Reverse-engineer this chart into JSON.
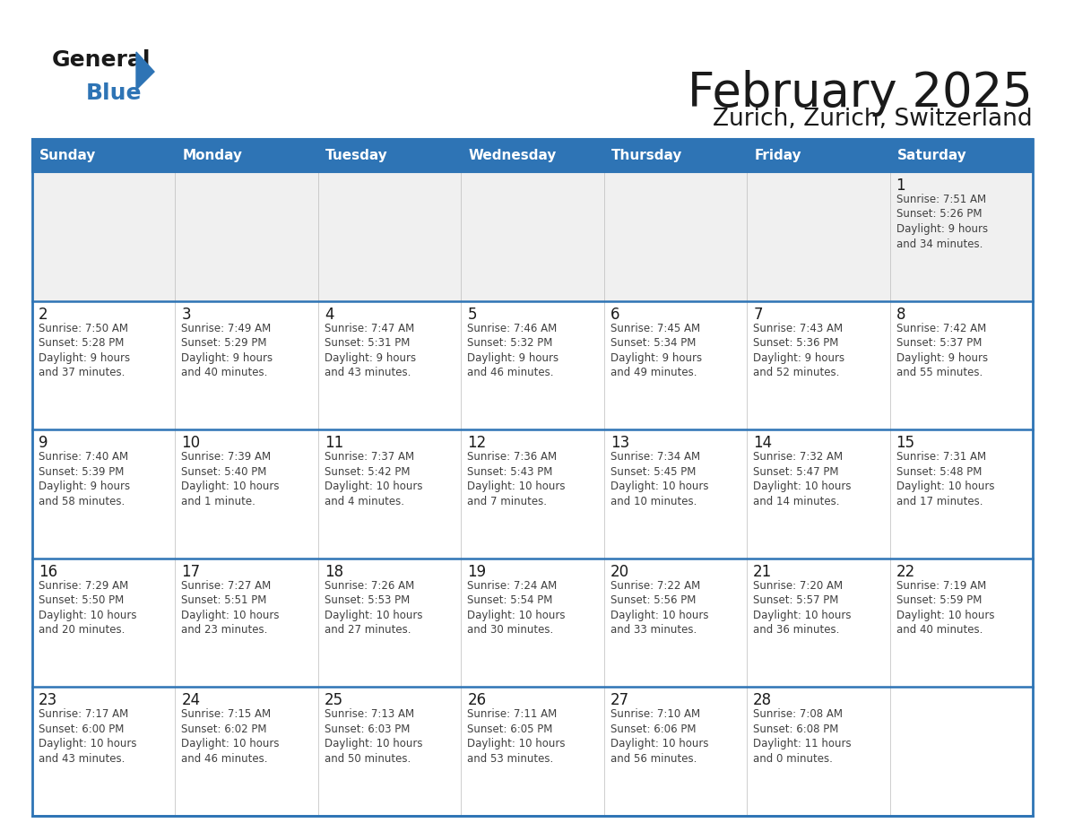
{
  "title": "February 2025",
  "subtitle": "Zurich, Zurich, Switzerland",
  "header_bg": "#2E74B5",
  "header_text": "#FFFFFF",
  "cell_bg": "#FFFFFF",
  "row1_bg": "#F0F0F0",
  "border_color": "#2E74B5",
  "grid_line_color": "#2E74B5",
  "day_headers": [
    "Sunday",
    "Monday",
    "Tuesday",
    "Wednesday",
    "Thursday",
    "Friday",
    "Saturday"
  ],
  "title_color": "#1A1A1A",
  "subtitle_color": "#1A1A1A",
  "day_number_color": "#1A1A1A",
  "info_text_color": "#404040",
  "logo_general_color": "#1A1A1A",
  "logo_blue_color": "#2E74B5",
  "days": [
    {
      "day": null,
      "info": ""
    },
    {
      "day": null,
      "info": ""
    },
    {
      "day": null,
      "info": ""
    },
    {
      "day": null,
      "info": ""
    },
    {
      "day": null,
      "info": ""
    },
    {
      "day": null,
      "info": ""
    },
    {
      "day": 1,
      "info": "Sunrise: 7:51 AM\nSunset: 5:26 PM\nDaylight: 9 hours\nand 34 minutes."
    },
    {
      "day": 2,
      "info": "Sunrise: 7:50 AM\nSunset: 5:28 PM\nDaylight: 9 hours\nand 37 minutes."
    },
    {
      "day": 3,
      "info": "Sunrise: 7:49 AM\nSunset: 5:29 PM\nDaylight: 9 hours\nand 40 minutes."
    },
    {
      "day": 4,
      "info": "Sunrise: 7:47 AM\nSunset: 5:31 PM\nDaylight: 9 hours\nand 43 minutes."
    },
    {
      "day": 5,
      "info": "Sunrise: 7:46 AM\nSunset: 5:32 PM\nDaylight: 9 hours\nand 46 minutes."
    },
    {
      "day": 6,
      "info": "Sunrise: 7:45 AM\nSunset: 5:34 PM\nDaylight: 9 hours\nand 49 minutes."
    },
    {
      "day": 7,
      "info": "Sunrise: 7:43 AM\nSunset: 5:36 PM\nDaylight: 9 hours\nand 52 minutes."
    },
    {
      "day": 8,
      "info": "Sunrise: 7:42 AM\nSunset: 5:37 PM\nDaylight: 9 hours\nand 55 minutes."
    },
    {
      "day": 9,
      "info": "Sunrise: 7:40 AM\nSunset: 5:39 PM\nDaylight: 9 hours\nand 58 minutes."
    },
    {
      "day": 10,
      "info": "Sunrise: 7:39 AM\nSunset: 5:40 PM\nDaylight: 10 hours\nand 1 minute."
    },
    {
      "day": 11,
      "info": "Sunrise: 7:37 AM\nSunset: 5:42 PM\nDaylight: 10 hours\nand 4 minutes."
    },
    {
      "day": 12,
      "info": "Sunrise: 7:36 AM\nSunset: 5:43 PM\nDaylight: 10 hours\nand 7 minutes."
    },
    {
      "day": 13,
      "info": "Sunrise: 7:34 AM\nSunset: 5:45 PM\nDaylight: 10 hours\nand 10 minutes."
    },
    {
      "day": 14,
      "info": "Sunrise: 7:32 AM\nSunset: 5:47 PM\nDaylight: 10 hours\nand 14 minutes."
    },
    {
      "day": 15,
      "info": "Sunrise: 7:31 AM\nSunset: 5:48 PM\nDaylight: 10 hours\nand 17 minutes."
    },
    {
      "day": 16,
      "info": "Sunrise: 7:29 AM\nSunset: 5:50 PM\nDaylight: 10 hours\nand 20 minutes."
    },
    {
      "day": 17,
      "info": "Sunrise: 7:27 AM\nSunset: 5:51 PM\nDaylight: 10 hours\nand 23 minutes."
    },
    {
      "day": 18,
      "info": "Sunrise: 7:26 AM\nSunset: 5:53 PM\nDaylight: 10 hours\nand 27 minutes."
    },
    {
      "day": 19,
      "info": "Sunrise: 7:24 AM\nSunset: 5:54 PM\nDaylight: 10 hours\nand 30 minutes."
    },
    {
      "day": 20,
      "info": "Sunrise: 7:22 AM\nSunset: 5:56 PM\nDaylight: 10 hours\nand 33 minutes."
    },
    {
      "day": 21,
      "info": "Sunrise: 7:20 AM\nSunset: 5:57 PM\nDaylight: 10 hours\nand 36 minutes."
    },
    {
      "day": 22,
      "info": "Sunrise: 7:19 AM\nSunset: 5:59 PM\nDaylight: 10 hours\nand 40 minutes."
    },
    {
      "day": 23,
      "info": "Sunrise: 7:17 AM\nSunset: 6:00 PM\nDaylight: 10 hours\nand 43 minutes."
    },
    {
      "day": 24,
      "info": "Sunrise: 7:15 AM\nSunset: 6:02 PM\nDaylight: 10 hours\nand 46 minutes."
    },
    {
      "day": 25,
      "info": "Sunrise: 7:13 AM\nSunset: 6:03 PM\nDaylight: 10 hours\nand 50 minutes."
    },
    {
      "day": 26,
      "info": "Sunrise: 7:11 AM\nSunset: 6:05 PM\nDaylight: 10 hours\nand 53 minutes."
    },
    {
      "day": 27,
      "info": "Sunrise: 7:10 AM\nSunset: 6:06 PM\nDaylight: 10 hours\nand 56 minutes."
    },
    {
      "day": 28,
      "info": "Sunrise: 7:08 AM\nSunset: 6:08 PM\nDaylight: 11 hours\nand 0 minutes."
    },
    {
      "day": null,
      "info": ""
    },
    {
      "day": null,
      "info": ""
    }
  ]
}
